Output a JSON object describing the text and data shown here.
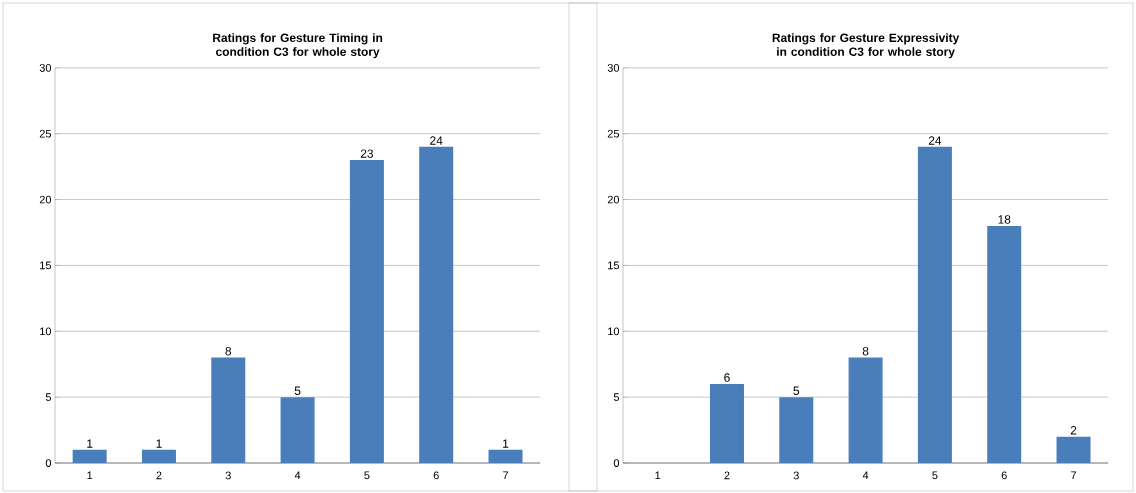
{
  "chart_data": [
    {
      "type": "bar",
      "title": "Ratings for Gesture Timing in condition C3 for whole story",
      "categories": [
        "1",
        "2",
        "3",
        "4",
        "5",
        "6",
        "7"
      ],
      "values": [
        1,
        1,
        8,
        5,
        23,
        24,
        1
      ],
      "color": "#4a7ebb",
      "ylim": [
        0,
        30
      ],
      "yticks": [
        0,
        5,
        10,
        15,
        20,
        25,
        30
      ],
      "grid": "y",
      "data_labels": true
    },
    {
      "type": "bar",
      "title": "Ratings for Gesture Expressivity in condition C3 for whole story",
      "categories": [
        "1",
        "2",
        "3",
        "4",
        "5",
        "6",
        "7"
      ],
      "values": [
        0,
        6,
        5,
        8,
        24,
        18,
        2
      ],
      "value_labels": [
        null,
        "6",
        "5",
        "8",
        "24",
        "18",
        "2"
      ],
      "color": "#4a7ebb",
      "ylim": [
        0,
        30
      ],
      "yticks": [
        0,
        5,
        10,
        15,
        20,
        25,
        30
      ],
      "grid": "y"
    }
  ]
}
